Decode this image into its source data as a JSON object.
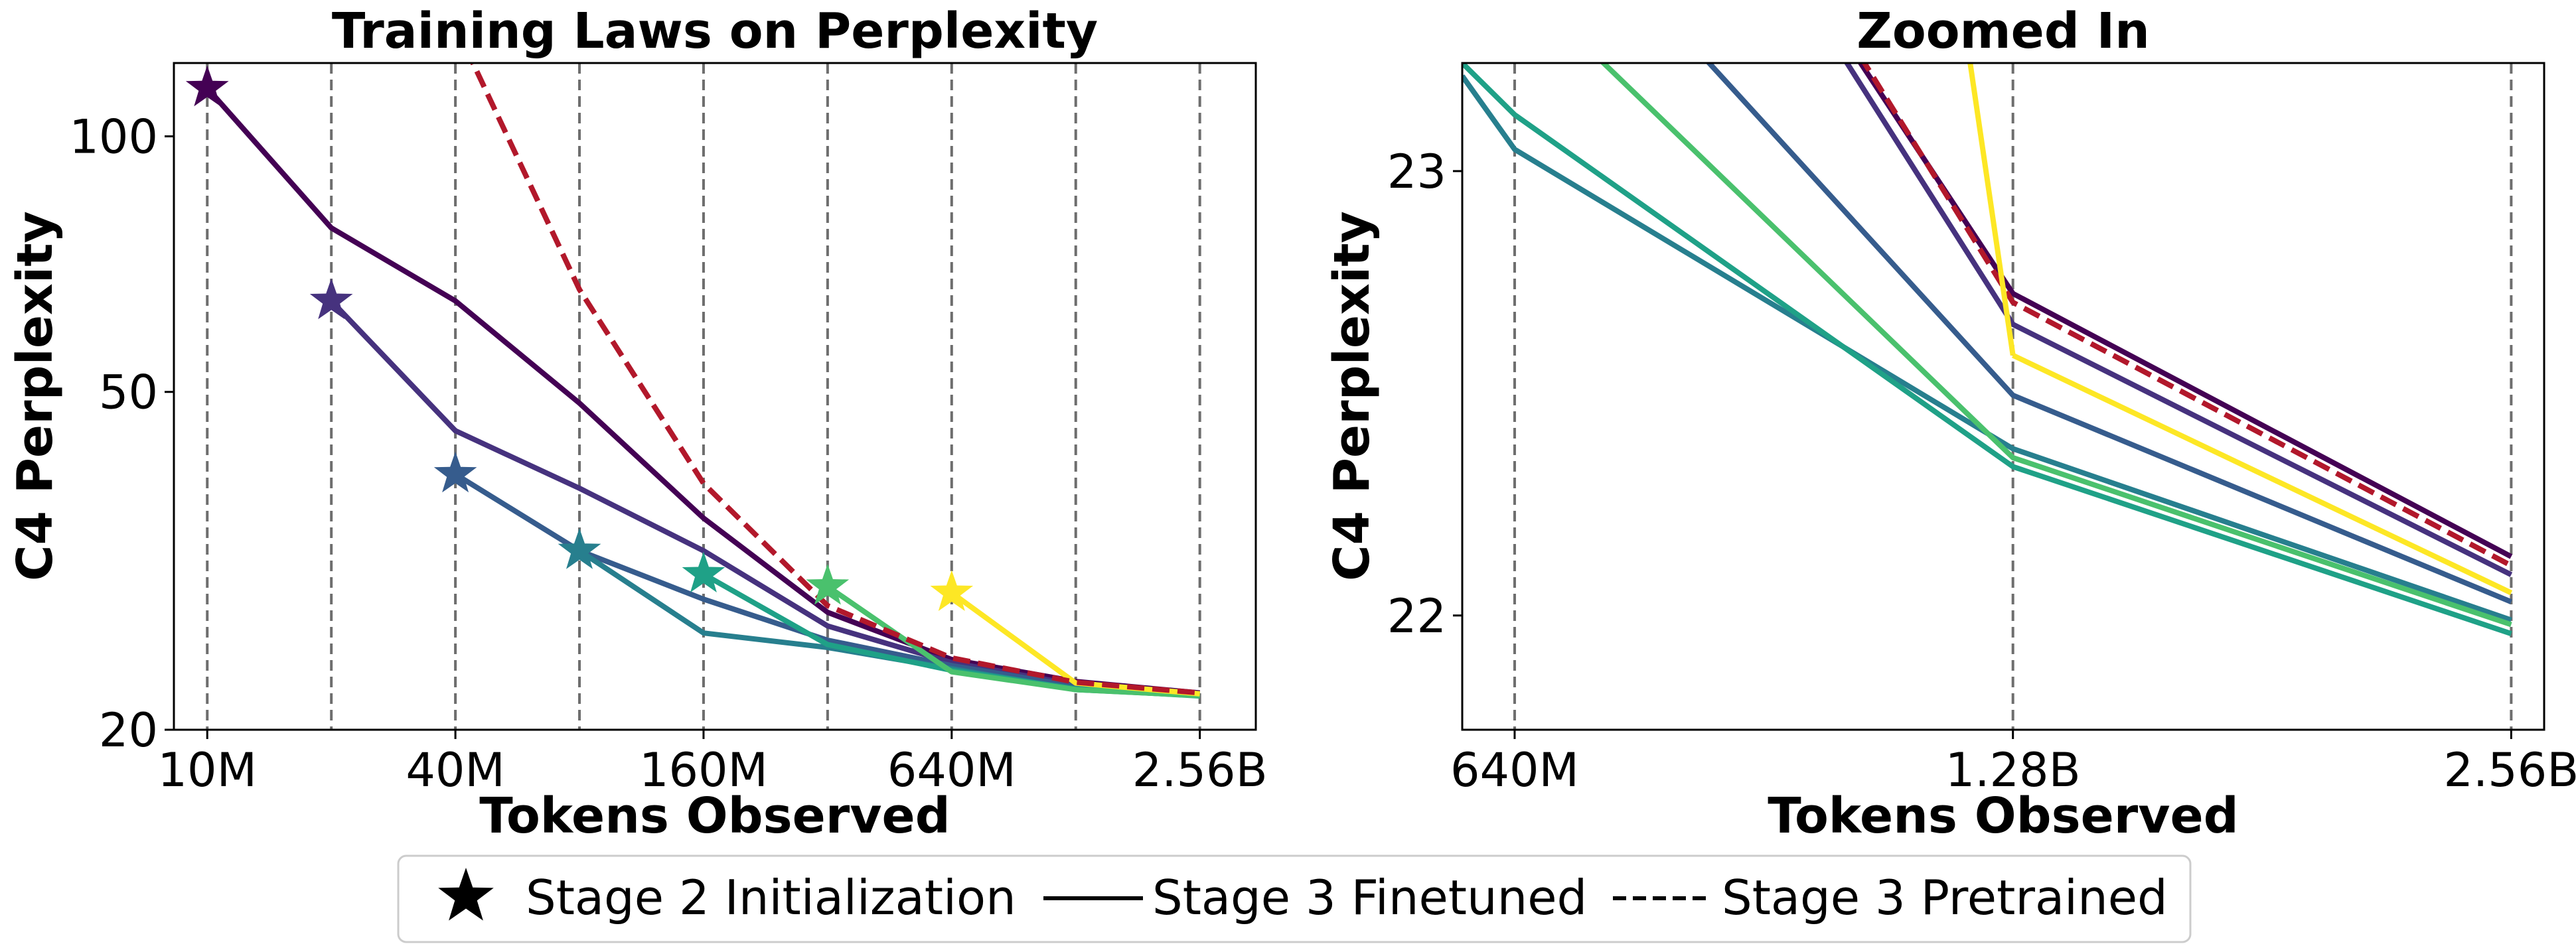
{
  "legend": {
    "items": [
      {
        "label": "Stage 2 Initialization",
        "marker": "star",
        "color": "#000000"
      },
      {
        "label": "Stage 3 Finetuned",
        "marker": "solid-line",
        "color": "#000000"
      },
      {
        "label": "Stage 3 Pretrained",
        "marker": "dashed-line",
        "color": "#000000"
      }
    ],
    "placement": "bottom-center"
  },
  "chart_data": [
    {
      "type": "line",
      "title": "Training Laws on Perplexity",
      "xlabel": "Tokens Observed",
      "ylabel": "C4 Perplexity",
      "x_scale": "log2",
      "y_scale": "log",
      "x_tick_values": [
        10,
        40,
        160,
        640,
        2560
      ],
      "x_tick_labels": [
        "10M",
        "40M",
        "160M",
        "640M",
        "2.56B"
      ],
      "y_tick_values": [
        20,
        50,
        100
      ],
      "y_tick_labels": [
        "20",
        "50",
        "100"
      ],
      "xlim": [
        8.3,
        3500
      ],
      "ylim": [
        20,
        122
      ],
      "vlines": [
        10,
        20,
        40,
        80,
        160,
        320,
        640,
        1280,
        2560
      ],
      "grid": false,
      "series": [
        {
          "color": "#440154",
          "dashed": false,
          "init": {
            "x": 10,
            "y": 114
          },
          "x": [
            10,
            20,
            40,
            80,
            160,
            320,
            640,
            1280,
            2560
          ],
          "y": [
            114,
            78,
            64,
            48.5,
            35.5,
            27.5,
            24.2,
            22.8,
            22.1
          ]
        },
        {
          "color": "#46327e",
          "dashed": false,
          "init": {
            "x": 20,
            "y": 64
          },
          "x": [
            20,
            40,
            80,
            160,
            320,
            640,
            1280,
            2560
          ],
          "y": [
            64,
            45,
            38.5,
            32.5,
            26.5,
            24.0,
            22.6,
            22.05
          ]
        },
        {
          "color": "#365c8d",
          "dashed": false,
          "init": {
            "x": 40,
            "y": 40
          },
          "x": [
            40,
            80,
            160,
            320,
            640,
            1280,
            2560
          ],
          "y": [
            40,
            32.5,
            28.5,
            25.5,
            23.8,
            22.5,
            21.98
          ]
        },
        {
          "color": "#277f8e",
          "dashed": false,
          "init": {
            "x": 80,
            "y": 32.5
          },
          "x": [
            80,
            160,
            320,
            640,
            1280,
            2560
          ],
          "y": [
            32.5,
            26.0,
            25.0,
            23.6,
            22.3,
            21.95
          ]
        },
        {
          "color": "#1fa187",
          "dashed": false,
          "init": {
            "x": 160,
            "y": 30.5
          },
          "x": [
            160,
            320,
            640,
            1280,
            2560
          ],
          "y": [
            30.5,
            25.2,
            23.5,
            22.35,
            21.92
          ]
        },
        {
          "color": "#4ac16d",
          "dashed": false,
          "init": {
            "x": 320,
            "y": 29.5
          },
          "x": [
            320,
            640,
            1280,
            2560
          ],
          "y": [
            29.5,
            23.4,
            22.3,
            21.94
          ]
        },
        {
          "color": "#fde725",
          "dashed": false,
          "init": {
            "x": 640,
            "y": 29.0
          },
          "x": [
            640,
            1280,
            2560
          ],
          "y": [
            29.0,
            22.7,
            22.05
          ]
        },
        {
          "color": "#b2182b",
          "dashed": true,
          "x": [
            40,
            80,
            160,
            320,
            640,
            1280,
            2560
          ],
          "y": [
            135,
            66,
            39,
            28,
            24.3,
            22.75,
            22.1
          ]
        }
      ]
    },
    {
      "type": "line",
      "title": "Zoomed In",
      "xlabel": "Tokens Observed",
      "ylabel": "C4 Perplexity",
      "x_scale": "log2",
      "y_scale": "log",
      "x_tick_values": [
        640,
        1280,
        2560
      ],
      "x_tick_labels": [
        "640M",
        "1.28B",
        "2.56B"
      ],
      "y_tick_values": [
        22,
        23
      ],
      "y_tick_labels": [
        "22",
        "23"
      ],
      "xlim": [
        595,
        2680
      ],
      "ylim": [
        21.75,
        23.25
      ],
      "vlines": [
        640,
        1280,
        2560
      ],
      "grid": false,
      "series": [
        {
          "color": "#440154",
          "dashed": false,
          "x": [
            640,
            1280,
            2560
          ],
          "y": [
            24.5,
            22.72,
            22.13
          ]
        },
        {
          "color": "#46327e",
          "dashed": false,
          "x": [
            640,
            1280,
            2560
          ],
          "y": [
            24.5,
            22.65,
            22.09
          ]
        },
        {
          "color": "#365c8d",
          "dashed": false,
          "x": [
            640,
            1280,
            2560
          ],
          "y": [
            23.75,
            22.49,
            22.03
          ]
        },
        {
          "color": "#277f8e",
          "dashed": false,
          "x": [
            595,
            640,
            1280,
            2560
          ],
          "y": [
            23.22,
            23.05,
            22.37,
            21.99
          ]
        },
        {
          "color": "#1fa187",
          "dashed": false,
          "x": [
            595,
            640,
            1280,
            2560
          ],
          "y": [
            23.25,
            23.13,
            22.33,
            21.96
          ]
        },
        {
          "color": "#4ac16d",
          "dashed": false,
          "x": [
            640,
            1280,
            2560
          ],
          "y": [
            23.45,
            22.35,
            21.98
          ]
        },
        {
          "color": "#fde725",
          "dashed": false,
          "x": [
            1280,
            2560
          ],
          "y": [
            22.58,
            22.05
          ]
        },
        {
          "color": "#b2182b",
          "dashed": true,
          "x": [
            640,
            1280,
            2560
          ],
          "y": [
            24.6,
            22.7,
            22.11
          ]
        }
      ],
      "yellow_entry": {
        "x": [
          1150,
          1280
        ],
        "y": [
          23.8,
          22.58
        ]
      }
    }
  ]
}
